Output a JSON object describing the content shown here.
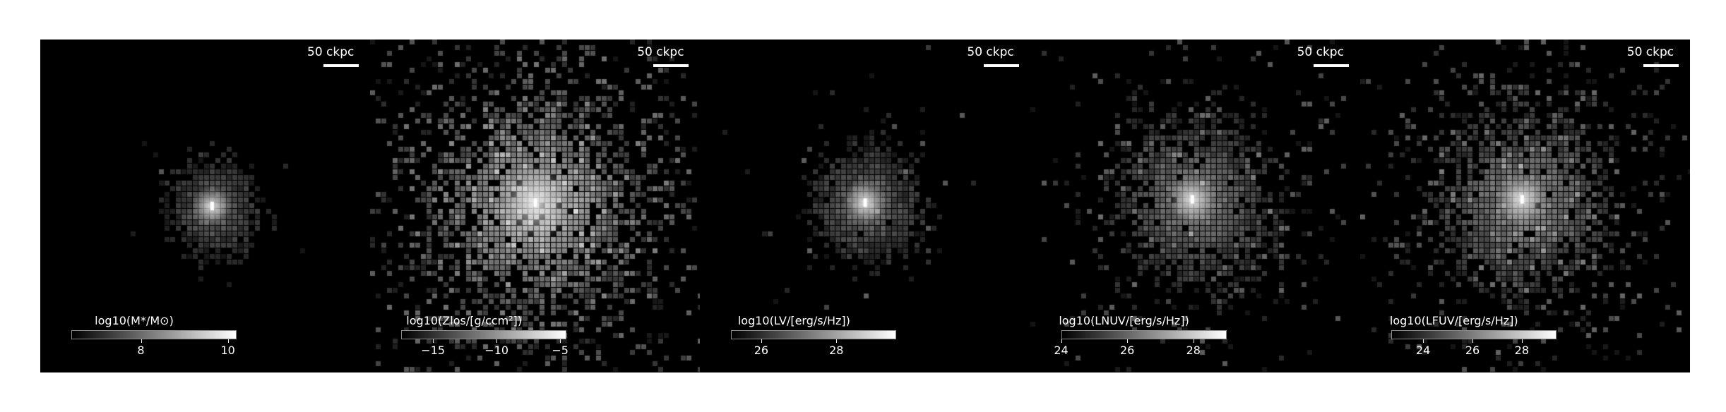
{
  "panels": [
    {
      "scalebar_label": "50 ckpc",
      "colorbar_label": "log10(M*/M⊙)",
      "colorbar_range": [
        6.4,
        10.2
      ],
      "ticks": [
        {
          "value": 8,
          "label": "8"
        },
        {
          "value": 10,
          "label": "10"
        }
      ],
      "map": "stellar_mass"
    },
    {
      "scalebar_label": "50 ckpc",
      "colorbar_label": "log10(Zlos/[g/ccm²])",
      "colorbar_range": [
        -17.5,
        -4.5
      ],
      "ticks": [
        {
          "value": -15,
          "label": "−15"
        },
        {
          "value": -10,
          "label": "−10"
        },
        {
          "value": -5,
          "label": "−5"
        }
      ],
      "map": "metal_column"
    },
    {
      "scalebar_label": "50 ckpc",
      "colorbar_label": "log10(LV/[erg/s/Hz])",
      "colorbar_range": [
        25.2,
        29.6
      ],
      "ticks": [
        {
          "value": 26,
          "label": "26"
        },
        {
          "value": 28,
          "label": "28"
        }
      ],
      "map": "lum_v"
    },
    {
      "scalebar_label": "50 ckpc",
      "colorbar_label": "log10(LNUV/[erg/s/Hz])",
      "colorbar_range": [
        24,
        29.0
      ],
      "ticks": [
        {
          "value": 24,
          "label": "24"
        },
        {
          "value": 26,
          "label": "26"
        },
        {
          "value": 28,
          "label": "28"
        }
      ],
      "map": "lum_nuv"
    },
    {
      "scalebar_label": "50 ckpc",
      "colorbar_label": "log10(LFUV/[erg/s/Hz])",
      "colorbar_range": [
        22.7,
        29.4
      ],
      "ticks": [
        {
          "value": 24,
          "label": "24"
        },
        {
          "value": 26,
          "label": "26"
        },
        {
          "value": 28,
          "label": "28"
        }
      ],
      "map": "lum_fuv"
    }
  ]
}
